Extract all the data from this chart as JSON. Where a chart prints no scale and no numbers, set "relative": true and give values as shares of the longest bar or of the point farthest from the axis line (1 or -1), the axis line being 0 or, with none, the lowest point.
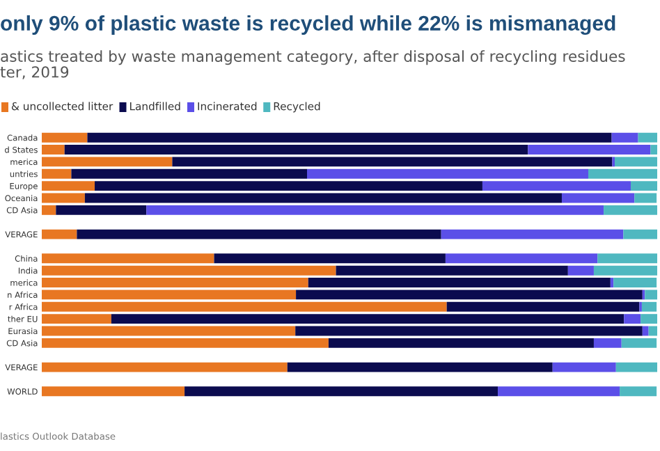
{
  "chart_data": {
    "type": "bar",
    "orientation": "horizontal",
    "stacked": true,
    "relative": true,
    "title": "only 9% of plastic waste is recycled while 22% is mismanaged",
    "subtitle": "astics treated by waste management category, after disposal of recycling residues\nter, 2019",
    "annotations": [
      "lastics Outlook Database"
    ],
    "legend": "top left",
    "categories": [
      "Canada",
      "d States",
      "merica",
      "untries",
      "Europe",
      "Oceania",
      "CD Asia",
      null,
      "VERAGE",
      null,
      "China",
      "India",
      "merica",
      "n Africa",
      "r Africa",
      "ther EU",
      "Eurasia",
      "CD Asia",
      null,
      "VERAGE",
      null,
      "WORLD"
    ],
    "series": [
      {
        "name": "& uncollected litter",
        "color": "#e87722",
        "values": [
          0.074,
          0.037,
          0.212,
          0.048,
          0.086,
          0.07,
          0.023,
          null,
          0.057,
          null,
          0.28,
          0.478,
          0.433,
          0.413,
          0.658,
          0.113,
          0.412,
          0.466,
          null,
          0.399,
          null,
          0.232
        ]
      },
      {
        "name": "Landfilled",
        "color": "#0b0b4f",
        "values": [
          0.852,
          0.753,
          0.715,
          0.383,
          0.63,
          0.775,
          0.147,
          null,
          0.592,
          null,
          0.376,
          0.377,
          0.491,
          0.563,
          0.313,
          0.833,
          0.564,
          0.431,
          null,
          0.431,
          null,
          0.509
        ]
      },
      {
        "name": "Incinerated",
        "color": "#5b4fe8",
        "values": [
          0.043,
          0.199,
          0.004,
          0.457,
          0.241,
          0.118,
          0.743,
          null,
          0.296,
          null,
          0.247,
          0.042,
          0.005,
          0.004,
          0.004,
          0.027,
          0.01,
          0.045,
          null,
          0.103,
          null,
          0.198
        ]
      },
      {
        "name": "Recycled",
        "color": "#4fb8c0",
        "values": [
          0.031,
          0.011,
          0.069,
          0.112,
          0.043,
          0.036,
          0.087,
          null,
          0.055,
          null,
          0.097,
          0.103,
          0.07,
          0.02,
          0.024,
          0.027,
          0.014,
          0.057,
          null,
          0.067,
          null,
          0.06
        ]
      }
    ]
  }
}
